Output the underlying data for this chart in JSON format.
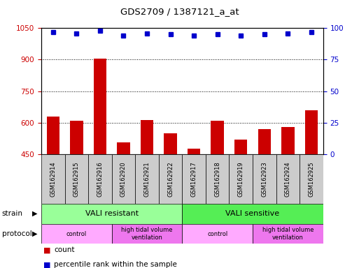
{
  "title": "GDS2709 / 1387121_a_at",
  "samples": [
    "GSM162914",
    "GSM162915",
    "GSM162916",
    "GSM162920",
    "GSM162921",
    "GSM162922",
    "GSM162917",
    "GSM162918",
    "GSM162919",
    "GSM162923",
    "GSM162924",
    "GSM162925"
  ],
  "counts": [
    630,
    608,
    905,
    505,
    612,
    550,
    475,
    608,
    520,
    568,
    578,
    660
  ],
  "percentile_ranks": [
    97,
    96,
    98,
    94,
    96,
    95,
    94,
    95,
    94,
    95,
    96,
    97
  ],
  "ylim_left": [
    450,
    1050
  ],
  "ylim_right": [
    0,
    100
  ],
  "yticks_left": [
    450,
    600,
    750,
    900,
    1050
  ],
  "yticks_right": [
    0,
    25,
    50,
    75,
    100
  ],
  "bar_color": "#cc0000",
  "dot_color": "#0000cc",
  "strain_groups": [
    {
      "label": "VALI resistant",
      "start": 0,
      "end": 6,
      "color": "#99ff99"
    },
    {
      "label": "VALI sensitive",
      "start": 6,
      "end": 12,
      "color": "#55ee55"
    }
  ],
  "protocol_groups": [
    {
      "label": "control",
      "start": 0,
      "end": 3,
      "color": "#ffaaff"
    },
    {
      "label": "high tidal volume\nventilation",
      "start": 3,
      "end": 6,
      "color": "#ee77ee"
    },
    {
      "label": "control",
      "start": 6,
      "end": 9,
      "color": "#ffaaff"
    },
    {
      "label": "high tidal volume\nventilation",
      "start": 9,
      "end": 12,
      "color": "#ee77ee"
    }
  ],
  "legend_count_color": "#cc0000",
  "legend_dot_color": "#0000cc",
  "tick_color_left": "#cc0000",
  "tick_color_right": "#0000cc",
  "bg_color": "#ffffff"
}
